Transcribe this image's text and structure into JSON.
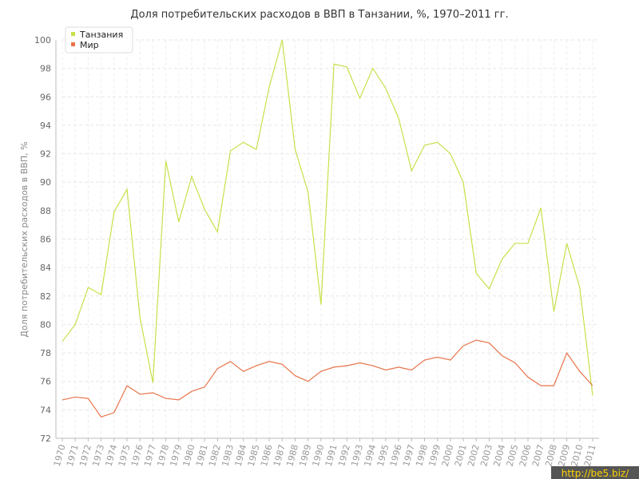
{
  "chart_data": {
    "type": "line",
    "title": "Доля потребительских расходов в ВВП в Танзании, %, 1970–2011 гг.",
    "xlabel": "",
    "ylabel": "Доля потребительских расходов в ВВП, %",
    "ylim": [
      72,
      100
    ],
    "yticks": [
      72,
      74,
      76,
      78,
      80,
      82,
      84,
      86,
      88,
      90,
      92,
      94,
      96,
      98,
      100
    ],
    "grid": true,
    "legend_position": "top-left",
    "x": [
      1970,
      1971,
      1972,
      1973,
      1974,
      1975,
      1976,
      1977,
      1978,
      1979,
      1980,
      1981,
      1982,
      1983,
      1984,
      1985,
      1986,
      1987,
      1988,
      1989,
      1990,
      1991,
      1992,
      1993,
      1994,
      1995,
      1996,
      1997,
      1998,
      1999,
      2000,
      2001,
      2002,
      2003,
      2004,
      2005,
      2006,
      2007,
      2008,
      2009,
      2010,
      2011
    ],
    "series": [
      {
        "name": "Танзания",
        "color": "#c8e04a",
        "values": [
          78.8,
          80.0,
          82.6,
          82.1,
          87.9,
          89.5,
          80.5,
          75.9,
          91.5,
          87.2,
          90.4,
          88.1,
          86.5,
          92.2,
          92.8,
          92.3,
          96.7,
          100.0,
          92.3,
          89.3,
          81.4,
          98.3,
          98.1,
          95.9,
          98.0,
          96.6,
          94.5,
          90.8,
          92.6,
          92.8,
          92.0,
          90.0,
          83.6,
          82.5,
          84.6,
          85.7,
          85.7,
          88.2,
          80.9,
          85.7,
          82.6,
          75.0
        ]
      },
      {
        "name": "Мир",
        "color": "#e8744a",
        "values": [
          74.7,
          74.9,
          74.8,
          73.5,
          73.8,
          75.7,
          75.1,
          75.2,
          74.8,
          74.7,
          75.3,
          75.6,
          76.9,
          77.4,
          76.7,
          77.1,
          77.4,
          77.2,
          76.4,
          76.0,
          76.7,
          77.0,
          77.1,
          77.3,
          77.1,
          76.8,
          77.0,
          76.8,
          77.5,
          77.7,
          77.5,
          78.5,
          78.9,
          78.7,
          77.8,
          77.3,
          76.3,
          75.7,
          75.7,
          78.0,
          76.7,
          75.7
        ]
      }
    ]
  },
  "watermark": "http://be5.biz/"
}
